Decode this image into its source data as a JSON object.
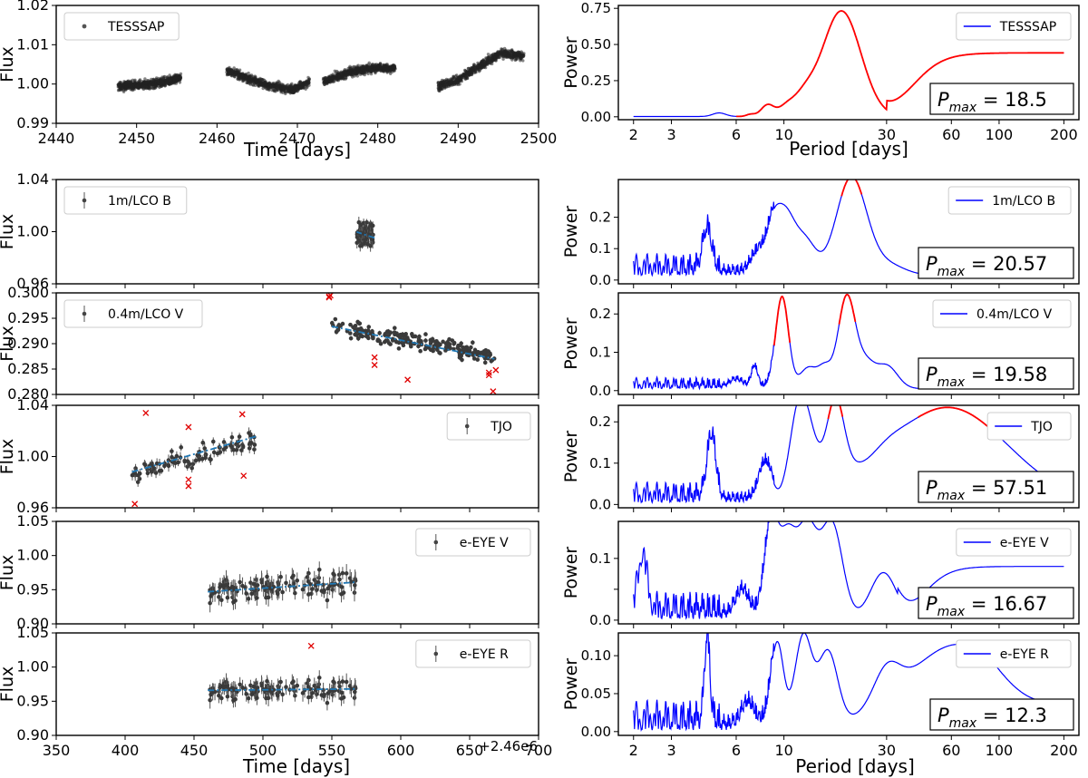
{
  "figure": {
    "left_offset_label": "+2.46e6",
    "left_xlabel": "Time [days]",
    "right_xlabel": "Period [days]"
  },
  "chart_data": [
    {
      "id": "tess-lc",
      "type": "scatter",
      "title": "",
      "xlabel": "Time [days]",
      "ylabel": "Flux",
      "xlim": [
        2440,
        2500
      ],
      "ylim": [
        0.99,
        1.02
      ],
      "xticks": [
        2440,
        2450,
        2460,
        2470,
        2480,
        2490,
        2500
      ],
      "yticks": [
        0.99,
        1.0,
        1.01,
        1.02
      ],
      "ytick_labels": [
        "0.99",
        "1.00",
        "1.01",
        "1.02"
      ],
      "legend": "TESSSAP",
      "legend_loc": "top-left",
      "segments": [
        {
          "x0": 2447.7,
          "x1": 2455.5,
          "trend": [
            [
              2447.7,
              0.9995
            ],
            [
              2451.5,
              0.9998
            ],
            [
              2455.5,
              1.0015
            ]
          ]
        },
        {
          "x0": 2461.2,
          "x1": 2471.5,
          "trend": [
            [
              2461.2,
              1.0035
            ],
            [
              2466.5,
              0.9995
            ],
            [
              2469.5,
              0.9985
            ],
            [
              2471.5,
              1.0005
            ]
          ]
        },
        {
          "x0": 2473.2,
          "x1": 2482.2,
          "trend": [
            [
              2473.2,
              1.0005
            ],
            [
              2476.5,
              1.003
            ],
            [
              2480.0,
              1.0042
            ],
            [
              2482.2,
              1.004
            ]
          ]
        },
        {
          "x0": 2487.5,
          "x1": 2498.2,
          "trend": [
            [
              2487.5,
              0.9995
            ],
            [
              2490.0,
              1.001
            ],
            [
              2493.0,
              1.005
            ],
            [
              2495.5,
              1.0078
            ],
            [
              2498.2,
              1.007
            ]
          ]
        }
      ]
    },
    {
      "id": "tess-pg",
      "type": "line",
      "xscale": "log",
      "xlabel": "Period [days]",
      "ylabel": "Power",
      "xlim": [
        1.7,
        235
      ],
      "ylim": [
        -0.02,
        0.77
      ],
      "xticks": [
        2,
        3,
        6,
        10,
        30,
        60,
        100,
        200
      ],
      "yticks": [
        0.0,
        0.25,
        0.5,
        0.75
      ],
      "ytick_labels": [
        "0.00",
        "0.25",
        "0.50",
        "0.75"
      ],
      "legend": "TESSSAP",
      "legend_loc": "top-right",
      "pmax": "18.5",
      "curve": {
        "base": 0.002,
        "peaks": [
          [
            18.5,
            0.73,
            0.09
          ],
          [
            12.3,
            0.11,
            0.05
          ],
          [
            10.2,
            0.055,
            0.035
          ],
          [
            8.4,
            0.08,
            0.03
          ],
          [
            5.0,
            0.025,
            0.03
          ],
          [
            7.0,
            0.015,
            0.02
          ]
        ],
        "plateau": {
          "start": 40,
          "level": 0.44,
          "scale": 0.35
        }
      },
      "highlight_ranges": [
        [
          6,
          235
        ]
      ]
    },
    {
      "id": "lcob-lc",
      "type": "scatter",
      "ylabel": "Flux",
      "xlim": [
        350,
        700
      ],
      "ylim": [
        0.96,
        1.04
      ],
      "yticks": [
        0.96,
        1.0,
        1.04
      ],
      "ytick_labels": [
        "0.96",
        "1.00",
        "1.04"
      ],
      "legend": "1m/LCO B",
      "legend_loc": "top-left",
      "data": {
        "x0": 581,
        "x1": 567,
        "xrange": [
          580,
          568
        ],
        "n": 85,
        "mean": 0.997,
        "slope": 5.5e-05,
        "scatter": 0.0085,
        "err": 0.0035
      },
      "outliers": [],
      "trend": [
        [
          581,
          0.9952
        ],
        [
          568,
          0.9998
        ]
      ]
    },
    {
      "id": "lcob-pg",
      "type": "line",
      "xscale": "log",
      "ylabel": "Power",
      "xlim": [
        1.7,
        235
      ],
      "ylim": [
        -0.012,
        0.32
      ],
      "yticks": [
        0.0,
        0.1,
        0.2
      ],
      "ytick_labels": [
        "0.0",
        "0.1",
        "0.2"
      ],
      "legend": "1m/LCO B",
      "legend_loc": "top-right",
      "pmax": "20.57",
      "curve": {
        "base": 0.015,
        "noise": 0.07,
        "peaks": [
          [
            20.57,
            0.31,
            0.07
          ],
          [
            10.0,
            0.19,
            0.045
          ],
          [
            12.5,
            0.11,
            0.05
          ],
          [
            8.8,
            0.1,
            0.03
          ],
          [
            30.0,
            0.035,
            0.08
          ],
          [
            4.4,
            0.13,
            0.02
          ],
          [
            7.5,
            0.06,
            0.03
          ]
        ]
      },
      "highlight_ranges": [
        [
          18.5,
          23.0
        ]
      ]
    },
    {
      "id": "lcov-lc",
      "type": "scatter",
      "ylabel": "Flux",
      "xlim": [
        350,
        700
      ],
      "ylim": [
        0.28,
        0.3
      ],
      "yticks": [
        0.28,
        0.285,
        0.29,
        0.295,
        0.3
      ],
      "ytick_labels": [
        "0.280",
        "0.285",
        "0.290",
        "0.295",
        "0.300"
      ],
      "legend": "0.4m/LCO V",
      "legend_loc": "top-left",
      "data": {
        "xrange": [
          550,
          668
        ],
        "n": 230,
        "mean": 0.2905,
        "slope": -5.2e-05,
        "scatter": 0.0016,
        "err": 0.0004
      },
      "outliers": [
        [
          548,
          0.2993
        ],
        [
          548,
          0.2991
        ],
        [
          549,
          0.2995
        ],
        [
          581,
          0.2873
        ],
        [
          581,
          0.2858
        ],
        [
          605,
          0.2829
        ],
        [
          664,
          0.2838
        ],
        [
          664,
          0.2843
        ],
        [
          667,
          0.2806
        ],
        [
          669,
          0.2848
        ]
      ],
      "trend": [
        [
          550,
          0.2934
        ],
        [
          668,
          0.287
        ]
      ]
    },
    {
      "id": "lcov-pg",
      "type": "line",
      "xscale": "log",
      "ylabel": "Power",
      "xlim": [
        1.7,
        235
      ],
      "ylim": [
        -0.01,
        0.255
      ],
      "yticks": [
        0.0,
        0.1,
        0.2
      ],
      "ytick_labels": [
        "0.0",
        "0.1",
        "0.2"
      ],
      "legend": "0.4m/LCO V",
      "legend_loc": "top-right",
      "pmax": "19.58",
      "curve": {
        "base": 0.005,
        "noise": 0.03,
        "peaks": [
          [
            9.8,
            0.24,
            0.03
          ],
          [
            19.58,
            0.24,
            0.04
          ],
          [
            13.0,
            0.055,
            0.04
          ],
          [
            15.5,
            0.05,
            0.03
          ],
          [
            24.0,
            0.06,
            0.04
          ],
          [
            30.0,
            0.06,
            0.05
          ],
          [
            7.3,
            0.055,
            0.015
          ],
          [
            6.0,
            0.02,
            0.03
          ]
        ]
      },
      "highlight_ranges": [
        [
          9.0,
          10.7
        ],
        [
          18.0,
          21.5
        ]
      ]
    },
    {
      "id": "tjo-lc",
      "type": "scatter",
      "ylabel": "Flux",
      "xlim": [
        350,
        700
      ],
      "ylim": [
        0.96,
        1.04
      ],
      "yticks": [
        0.96,
        1.0,
        1.04
      ],
      "ytick_labels": [
        "0.96",
        "1.00",
        "1.04"
      ],
      "legend": "TJO",
      "legend_loc": "top-right",
      "data": {
        "xrange": [
          405,
          496
        ],
        "n": 95,
        "mean": 1.0,
        "slope": 0.00032,
        "scatter": 0.0075,
        "err": 0.0035
      },
      "outliers": [
        [
          407,
          0.963
        ],
        [
          415,
          1.034
        ],
        [
          446,
          1.023
        ],
        [
          446,
          0.982
        ],
        [
          446,
          0.977
        ],
        [
          485,
          1.033
        ],
        [
          486,
          0.985
        ]
      ],
      "trend": [
        [
          405,
          0.988
        ],
        [
          496,
          1.016
        ]
      ]
    },
    {
      "id": "tjo-pg",
      "type": "line",
      "xscale": "log",
      "ylabel": "Power",
      "xlim": [
        1.7,
        235
      ],
      "ylim": [
        -0.008,
        0.24
      ],
      "yticks": [
        0.0,
        0.1,
        0.2
      ],
      "ytick_labels": [
        "0.0",
        "0.1",
        "0.2"
      ],
      "legend": "TJO",
      "legend_loc": "top-right",
      "pmax": "57.51",
      "curve": {
        "base": 0.005,
        "noise": 0.05,
        "peaks": [
          [
            57.51,
            0.23,
            0.28
          ],
          [
            17.3,
            0.2,
            0.04
          ],
          [
            12.8,
            0.155,
            0.05
          ],
          [
            11.5,
            0.13,
            0.04
          ],
          [
            4.6,
            0.15,
            0.02
          ],
          [
            8.2,
            0.09,
            0.03
          ],
          [
            20.0,
            0.02,
            0.05
          ],
          [
            30.0,
            0.015,
            0.07
          ]
        ]
      },
      "highlight_ranges": [
        [
          16.0,
          18.8
        ],
        [
          42.0,
          90.0
        ]
      ]
    },
    {
      "id": "eyev-lc",
      "type": "scatter",
      "ylabel": "Flux",
      "xlim": [
        350,
        700
      ],
      "ylim": [
        0.9,
        1.05
      ],
      "yticks": [
        0.9,
        0.95,
        1.0,
        1.05
      ],
      "ytick_labels": [
        "0.90",
        "0.95",
        "1.00",
        "1.05"
      ],
      "legend": "e-EYE V",
      "legend_loc": "top-right",
      "data": {
        "xrange": [
          460,
          568
        ],
        "n": 130,
        "mean": 0.955,
        "slope": 0.00013,
        "scatter": 0.016,
        "err": 0.011
      },
      "outliers": [],
      "trend": [
        [
          460,
          0.947
        ],
        [
          568,
          0.961
        ]
      ]
    },
    {
      "id": "eyev-pg",
      "type": "line",
      "xscale": "log",
      "ylabel": "Power",
      "xlim": [
        1.7,
        235
      ],
      "ylim": [
        -0.006,
        0.16
      ],
      "yticks": [
        0.0,
        0.05,
        0.1
      ],
      "ytick_labels": [
        "0.0",
        "",
        "0.1"
      ],
      "legend": "e-EYE V",
      "legend_loc": "top-right",
      "pmax": "16.67",
      "curve": {
        "base": 0.002,
        "noise": 0.045,
        "peaks": [
          [
            16.67,
            0.155,
            0.05
          ],
          [
            12.8,
            0.145,
            0.045
          ],
          [
            8.7,
            0.145,
            0.03
          ],
          [
            10.3,
            0.13,
            0.04
          ],
          [
            2.2,
            0.09,
            0.02
          ],
          [
            29.0,
            0.075,
            0.06
          ],
          [
            6.4,
            0.04,
            0.03
          ]
        ],
        "plateau": {
          "start": 45,
          "level": 0.085,
          "scale": 0.3
        }
      },
      "highlight_ranges": []
    },
    {
      "id": "eyer-lc",
      "type": "scatter",
      "ylabel": "Flux",
      "xlim": [
        350,
        700
      ],
      "ylim": [
        0.9,
        1.05
      ],
      "yticks": [
        0.9,
        0.95,
        1.0,
        1.05
      ],
      "ytick_labels": [
        "0.90",
        "0.95",
        "1.00",
        "1.05"
      ],
      "legend": "e-EYE R",
      "legend_loc": "top-right",
      "data": {
        "xrange": [
          460,
          568
        ],
        "n": 130,
        "mean": 0.967,
        "slope": 2e-05,
        "scatter": 0.013,
        "err": 0.01
      },
      "outliers": [
        [
          535,
          1.031
        ]
      ],
      "trend": [
        [
          460,
          0.966
        ],
        [
          568,
          0.968
        ]
      ]
    },
    {
      "id": "eyer-pg",
      "type": "line",
      "xscale": "log",
      "ylabel": "Power",
      "xlim": [
        1.7,
        235
      ],
      "ylim": [
        -0.005,
        0.13
      ],
      "yticks": [
        0.0,
        0.05,
        0.1
      ],
      "ytick_labels": [
        "0.00",
        "0.05",
        "0.10"
      ],
      "legend": "e-EYE R",
      "legend_loc": "top-right",
      "pmax": "12.3",
      "curve": {
        "base": 0.002,
        "noise": 0.04,
        "peaks": [
          [
            12.3,
            0.122,
            0.04
          ],
          [
            9.3,
            0.115,
            0.03
          ],
          [
            16.0,
            0.098,
            0.045
          ],
          [
            4.4,
            0.113,
            0.012
          ],
          [
            65.0,
            0.113,
            0.25
          ],
          [
            30.0,
            0.042,
            0.06
          ],
          [
            6.8,
            0.03,
            0.03
          ]
        ],
        "tail": {
          "start": 90,
          "level": 0.042
        }
      },
      "highlight_ranges": []
    }
  ]
}
